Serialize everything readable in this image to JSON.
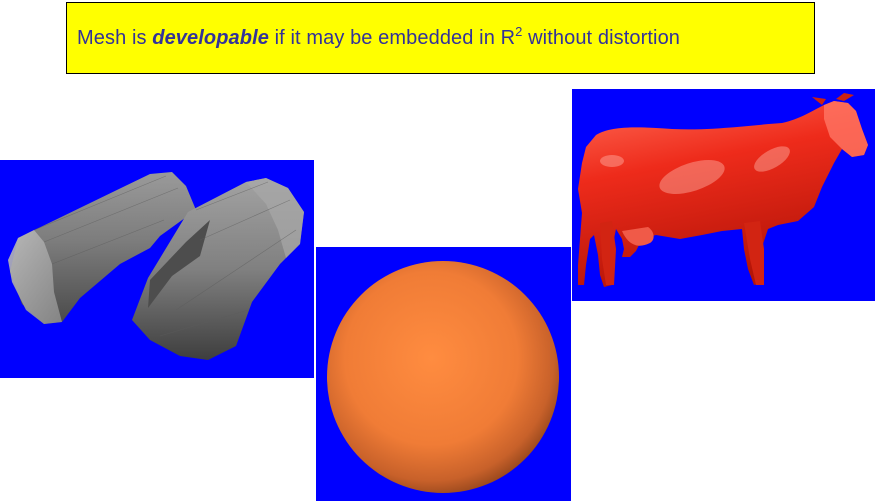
{
  "definition": {
    "prefix": "Mesh is ",
    "term": "developable",
    "middle": " if it may be embedded in R",
    "superscript": "2",
    "suffix": " without distortion"
  },
  "colors": {
    "definition_background": "#ffff00",
    "definition_text": "#333399",
    "panel_background": "#0000ff",
    "cylinder_surface": "#7a7a7a",
    "sphere_surface": "#ff8438",
    "cow_surface": "#ee2b1b"
  },
  "panels": {
    "cylinder": {
      "icon": "developable-cylinders-icon"
    },
    "sphere": {
      "icon": "sphere-icon"
    },
    "cow": {
      "icon": "cow-icon"
    }
  }
}
